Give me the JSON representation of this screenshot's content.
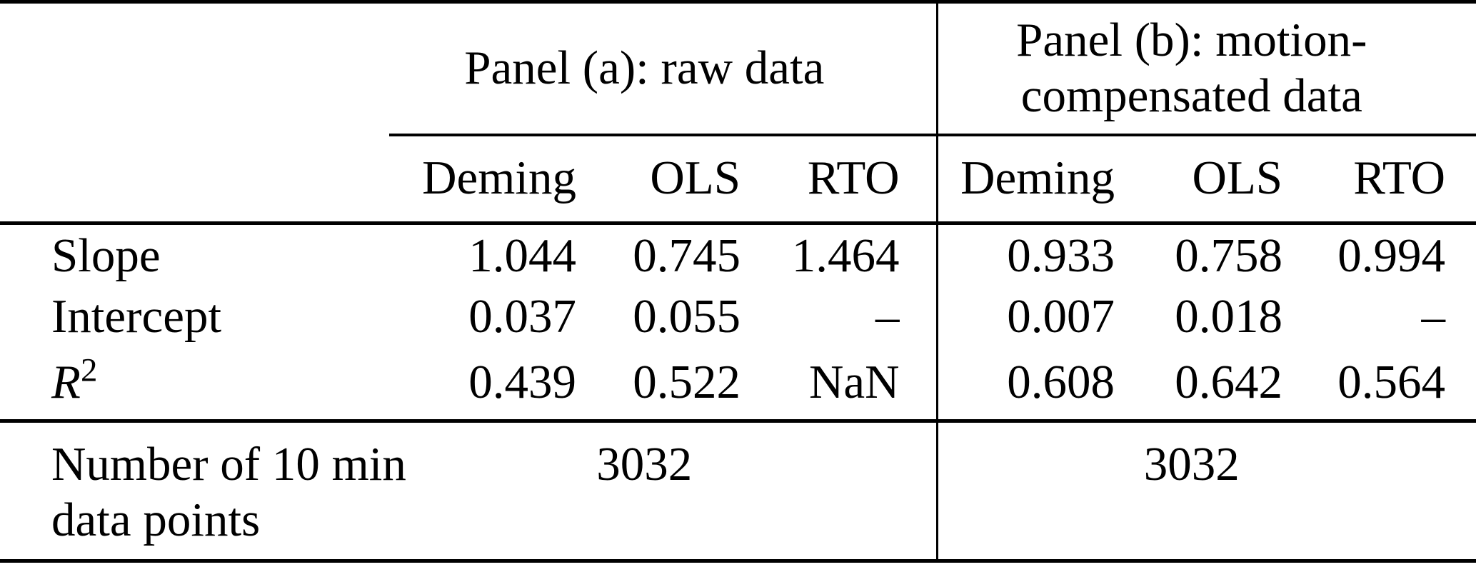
{
  "table": {
    "panels": [
      {
        "title": "Panel (a): raw data"
      },
      {
        "title": "Panel (b): motion-\ncompensated data"
      }
    ],
    "method_headers": [
      "Deming",
      "OLS",
      "RTO",
      "Deming",
      "OLS",
      "RTO"
    ],
    "rows": [
      {
        "label": "Slope",
        "values": [
          "1.044",
          "0.745",
          "1.464",
          "0.933",
          "0.758",
          "0.994"
        ]
      },
      {
        "label": "Intercept",
        "values": [
          "0.037",
          "0.055",
          "–",
          "0.007",
          "0.018",
          "–"
        ]
      },
      {
        "label": "R",
        "label_sup": "2",
        "values": [
          "0.439",
          "0.522",
          "NaN",
          "0.608",
          "0.642",
          "0.564"
        ]
      }
    ],
    "footer": {
      "label": "Number of 10 min\ndata points",
      "values": [
        "3032",
        "3032"
      ]
    }
  }
}
